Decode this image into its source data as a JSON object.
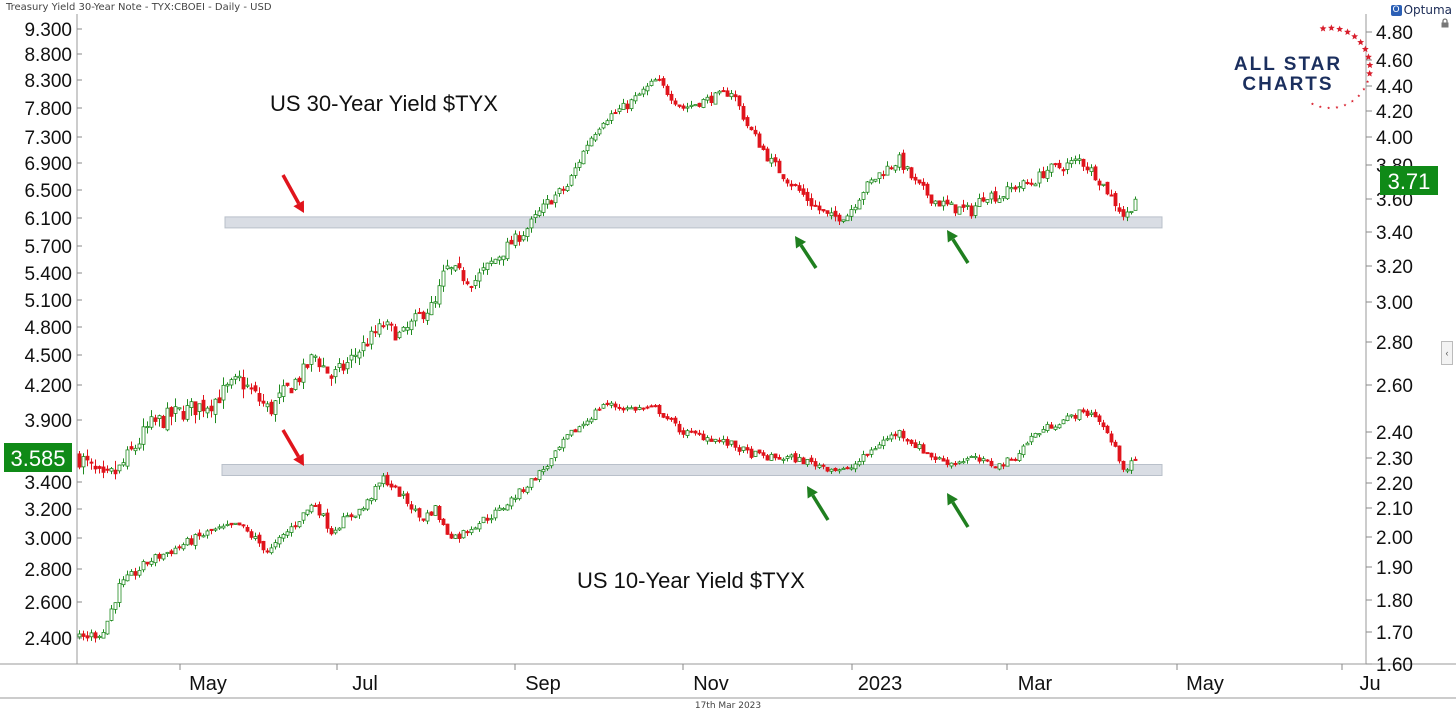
{
  "header": {
    "instrument": "Treasury Yield 30-Year Note - TYX:CBOEI - Daily - USD",
    "brand": "Optuma",
    "brand_mark": "O",
    "date_footer": "17th Mar 2023"
  },
  "logo": {
    "line1": "ALL STAR",
    "line2": "CHARTS"
  },
  "colors": {
    "up": "#1f8a1f",
    "down": "#e0141c",
    "band": "#d9dde4",
    "badge": "#0f8a17"
  },
  "chart_data": {
    "type": "candlestick",
    "x_axis": {
      "labels": [
        "May",
        "Jul",
        "Sep",
        "Nov",
        "2023",
        "Mar",
        "May",
        "Ju"
      ]
    },
    "panels": [
      {
        "name": "US 30-Year Yield $TYX",
        "annotation": "US 30-Year Yield $TYX",
        "right_axis_ticks": [
          "4.80",
          "4.60",
          "4.40",
          "4.20",
          "4.00",
          "3.80",
          "3.60",
          "3.40",
          "3.20",
          "3.00",
          "2.80",
          "2.60"
        ],
        "last_value": "3.71",
        "support_level": 3.46,
        "arrows": [
          "red-down",
          "green-up",
          "green-up"
        ],
        "path": [
          [
            0,
            3.6
          ],
          [
            24,
            3.41
          ],
          [
            40,
            3.5
          ],
          [
            70,
            3.85
          ],
          [
            95,
            3.95
          ],
          [
            132,
            4.05
          ],
          [
            160,
            4.25
          ],
          [
            190,
            3.98
          ],
          [
            222,
            4.3
          ],
          [
            235,
            4.5
          ],
          [
            252,
            4.28
          ],
          [
            265,
            4.38
          ],
          [
            284,
            4.6
          ],
          [
            304,
            4.82
          ],
          [
            322,
            4.7
          ],
          [
            342,
            4.95
          ],
          [
            356,
            5.05
          ],
          [
            366,
            5.45
          ],
          [
            378,
            5.4
          ],
          [
            394,
            5.3
          ],
          [
            420,
            5.6
          ],
          [
            445,
            5.9
          ],
          [
            470,
            6.35
          ],
          [
            488,
            6.55
          ],
          [
            508,
            7.2
          ],
          [
            524,
            7.6
          ],
          [
            548,
            7.85
          ],
          [
            577,
            8.3
          ],
          [
            603,
            7.8
          ],
          [
            628,
            7.95
          ],
          [
            653,
            8.1
          ],
          [
            668,
            7.5
          ],
          [
            690,
            6.95
          ],
          [
            712,
            6.6
          ],
          [
            733,
            6.3
          ],
          [
            750,
            6.1
          ],
          [
            768,
            6.15
          ],
          [
            784,
            6.5
          ],
          [
            801,
            6.75
          ],
          [
            820,
            6.95
          ],
          [
            836,
            6.6
          ],
          [
            855,
            6.35
          ],
          [
            872,
            6.25
          ],
          [
            892,
            6.2
          ],
          [
            906,
            6.45
          ],
          [
            920,
            6.4
          ],
          [
            935,
            6.55
          ],
          [
            952,
            6.6
          ],
          [
            968,
            6.8
          ],
          [
            984,
            6.85
          ],
          [
            1000,
            6.95
          ],
          [
            1015,
            6.75
          ],
          [
            1030,
            6.45
          ],
          [
            1046,
            6.1
          ],
          [
            1058,
            6.45
          ]
        ]
      },
      {
        "name": "US 10-Year Yield $TYX",
        "annotation": "US 10-Year Yield $TYX",
        "left_axis_ticks": [
          "9.300",
          "8.800",
          "8.300",
          "7.800",
          "7.300",
          "6.900",
          "6.500",
          "6.100",
          "5.700",
          "5.400",
          "5.100",
          "4.800",
          "4.500",
          "4.200",
          "3.900",
          "3.400",
          "3.200",
          "3.000",
          "2.800",
          "2.600",
          "2.400"
        ],
        "right_axis_ticks": [
          "2.60",
          "2.40",
          "2.30",
          "2.20",
          "2.10",
          "2.00",
          "1.90",
          "1.80",
          "1.70",
          "1.60"
        ],
        "last_value": "3.585",
        "support_level": 2.25,
        "arrows": [
          "red-down",
          "green-up",
          "green-up"
        ],
        "path": [
          [
            0,
            1.68
          ],
          [
            24,
            1.7
          ],
          [
            40,
            1.84
          ],
          [
            70,
            1.92
          ],
          [
            95,
            1.96
          ],
          [
            132,
            2.02
          ],
          [
            160,
            2.04
          ],
          [
            190,
            1.95
          ],
          [
            222,
            2.07
          ],
          [
            235,
            2.12
          ],
          [
            252,
            2.02
          ],
          [
            265,
            2.06
          ],
          [
            284,
            2.1
          ],
          [
            304,
            2.22
          ],
          [
            322,
            2.15
          ],
          [
            342,
            2.06
          ],
          [
            356,
            2.1
          ],
          [
            366,
            2.02
          ],
          [
            378,
            2.0
          ],
          [
            394,
            2.04
          ],
          [
            420,
            2.09
          ],
          [
            445,
            2.18
          ],
          [
            470,
            2.28
          ],
          [
            488,
            2.38
          ],
          [
            508,
            2.45
          ],
          [
            524,
            2.52
          ],
          [
            548,
            2.5
          ],
          [
            577,
            2.5
          ],
          [
            603,
            2.4
          ],
          [
            628,
            2.38
          ],
          [
            653,
            2.35
          ],
          [
            668,
            2.32
          ],
          [
            690,
            2.3
          ],
          [
            712,
            2.3
          ],
          [
            733,
            2.28
          ],
          [
            750,
            2.26
          ],
          [
            768,
            2.25
          ],
          [
            784,
            2.3
          ],
          [
            801,
            2.36
          ],
          [
            820,
            2.4
          ],
          [
            836,
            2.35
          ],
          [
            855,
            2.3
          ],
          [
            872,
            2.28
          ],
          [
            892,
            2.3
          ],
          [
            906,
            2.28
          ],
          [
            920,
            2.27
          ],
          [
            935,
            2.3
          ],
          [
            952,
            2.38
          ],
          [
            968,
            2.42
          ],
          [
            984,
            2.45
          ],
          [
            1000,
            2.48
          ],
          [
            1015,
            2.48
          ],
          [
            1030,
            2.38
          ],
          [
            1046,
            2.25
          ],
          [
            1058,
            2.3
          ]
        ]
      }
    ]
  }
}
